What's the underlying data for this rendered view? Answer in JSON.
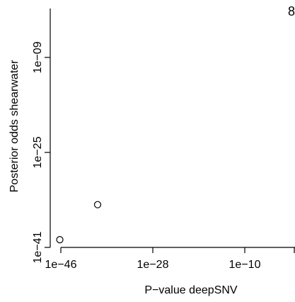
{
  "chart_data": {
    "type": "scatter",
    "title": "",
    "xlabel": "P−value deepSNV",
    "ylabel": "Posterior odds shearwater",
    "x_scale": "log10",
    "y_scale": "log10",
    "xlim_log10": [
      -46,
      -1
    ],
    "ylim_log10": [
      -41,
      0
    ],
    "x_ticks": [
      {
        "log10": -46,
        "label": "1e−46"
      },
      {
        "log10": -28,
        "label": "1e−28"
      },
      {
        "log10": -10,
        "label": "1e−10"
      }
    ],
    "y_ticks": [
      {
        "log10": -41,
        "label": "1e−41"
      },
      {
        "log10": -25,
        "label": "1e−25"
      },
      {
        "log10": -9,
        "label": "1e−09"
      }
    ],
    "points": [
      {
        "x": 1e-46,
        "y": 1e-40,
        "x_log10": -46.2,
        "y_log10": -39.7
      },
      {
        "x": 1e-39,
        "y": 1e-34,
        "x_log10": -38.8,
        "y_log10": -33.8
      }
    ],
    "corner_text": "8",
    "grid": false,
    "legend": "none",
    "marker_style": "open-circle",
    "colors": {
      "axis": "#000000",
      "marker": "#000000",
      "background": "#ffffff"
    }
  }
}
